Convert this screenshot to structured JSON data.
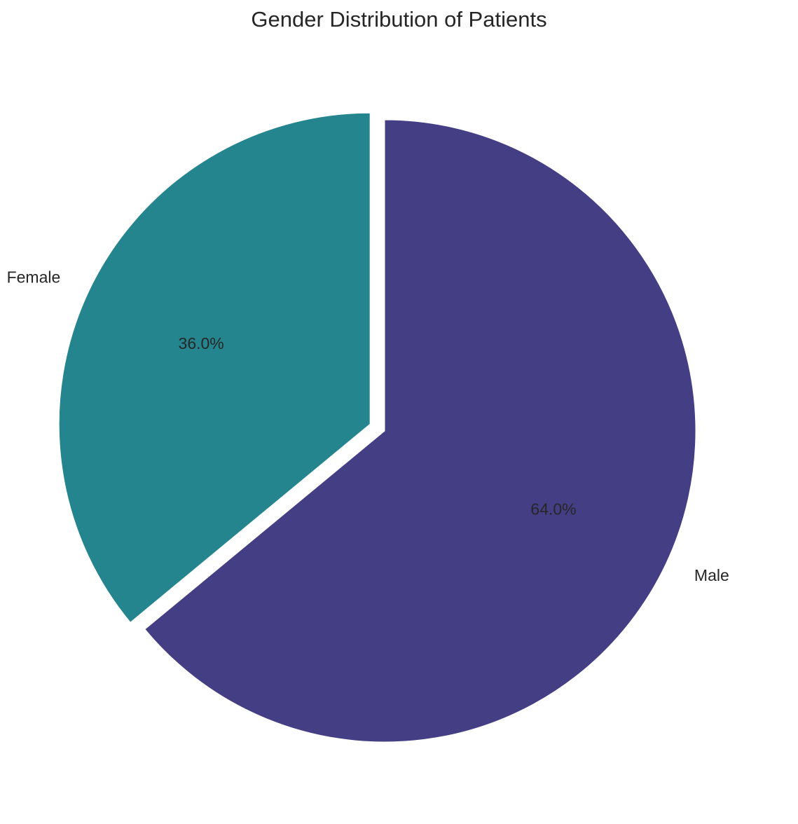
{
  "chart_data": {
    "type": "pie",
    "title": "Gender Distribution of Patients",
    "slices": [
      {
        "label": "Male",
        "value": 64.0,
        "pct_label": "64.0%",
        "color": "#443e85",
        "exploded": false
      },
      {
        "label": "Female",
        "value": 36.0,
        "pct_label": "36.0%",
        "color": "#25858e",
        "exploded": true
      }
    ],
    "start_angle_deg": 90,
    "direction": "clockwise",
    "edge_color": "#ffffff"
  }
}
